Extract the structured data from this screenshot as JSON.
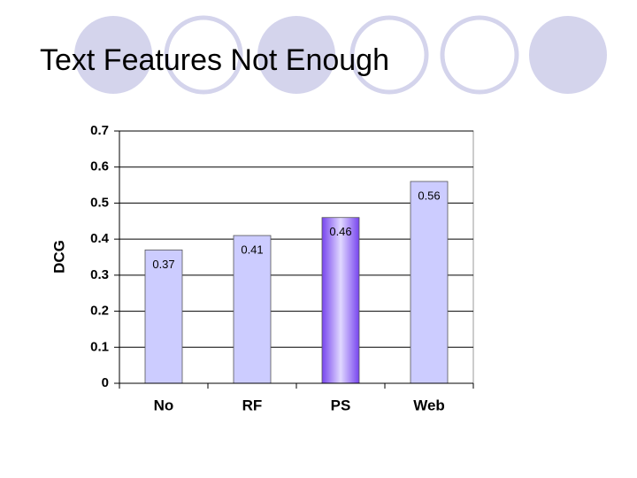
{
  "chart_data": {
    "type": "bar",
    "title": "Text Features Not Enough",
    "y_label": "DCG",
    "categories": [
      "No",
      "RF",
      "PS",
      "Web"
    ],
    "values": [
      0.37,
      0.41,
      0.46,
      0.56
    ],
    "colors": [
      "#ccccff",
      "#ccccff",
      "#7744ee",
      "#ccccff"
    ],
    "ylim": [
      0,
      0.7
    ],
    "yticks": [
      0,
      0.1,
      0.2,
      0.3,
      0.4,
      0.5,
      0.6,
      0.7
    ],
    "grid": true
  }
}
